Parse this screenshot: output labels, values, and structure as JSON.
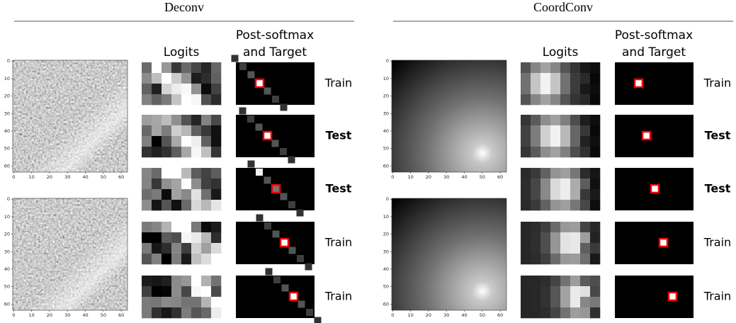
{
  "panels": [
    {
      "title": "Deconv",
      "logits_header": "Logits",
      "softmax_header": [
        "Post-softmax",
        "and Target"
      ],
      "row_labels": [
        "Train",
        "Test",
        "Test",
        "Train",
        "Train"
      ],
      "axis_ticks": [
        0,
        10,
        20,
        30,
        40,
        50,
        60
      ]
    },
    {
      "title": "CoordConv",
      "logits_header": "Logits",
      "softmax_header": [
        "Post-softmax",
        "and Target"
      ],
      "row_labels": [
        "Train",
        "Test",
        "Test",
        "Train",
        "Train"
      ],
      "axis_ticks": [
        0,
        10,
        20,
        30,
        40,
        50,
        60
      ]
    }
  ]
}
